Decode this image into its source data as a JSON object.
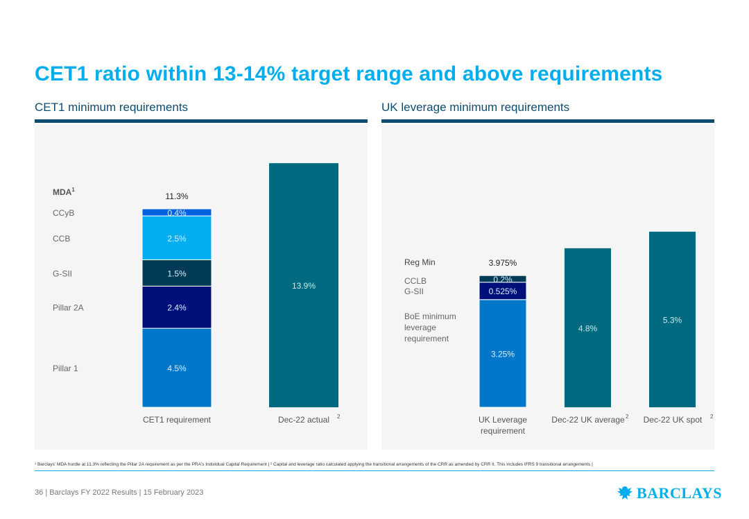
{
  "title": "CET1 ratio within 13-14% target range and above requirements",
  "left_chart_title": "CET1 minimum requirements",
  "right_chart_title": "UK leverage minimum requirements",
  "colors": {
    "accent": "#00aeef",
    "navy": "#0e4b6e",
    "teal": "#006a80",
    "blue_mid": "#0077c8",
    "dark_navy": "#000f7a",
    "dark_teal": "#003a57",
    "light_blue": "#00aeef",
    "bright_blue": "#0061e0"
  },
  "chart_data": [
    {
      "type": "bar",
      "title": "CET1 minimum requirements",
      "categories": [
        "CET1 requirement",
        "Dec-22 actual"
      ],
      "category_superscripts": [
        "",
        "2"
      ],
      "stack_components": [
        {
          "name": "Pillar 1",
          "value": 4.5,
          "label": "4.5%"
        },
        {
          "name": "Pillar 2A",
          "value": 2.4,
          "label": "2.4%"
        },
        {
          "name": "G-SII",
          "value": 1.5,
          "label": "1.5%"
        },
        {
          "name": "CCB",
          "value": 2.5,
          "label": "2.5%"
        },
        {
          "name": "CCyB",
          "value": 0.4,
          "label": "0.4%"
        }
      ],
      "stack_total_label": "MDA",
      "stack_total_superscript": "1",
      "stack_total_value": "11.3%",
      "actual": {
        "value": 13.9,
        "label": "13.9%"
      },
      "ylim": [
        0,
        14.5
      ]
    },
    {
      "type": "bar",
      "title": "UK leverage minimum requirements",
      "categories": [
        "UK Leverage requirement",
        "Dec-22 UK average",
        "Dec-22 UK spot"
      ],
      "category_lines": [
        [
          "UK Leverage",
          "requirement"
        ],
        [
          "Dec-22 UK average"
        ],
        [
          "Dec-22 UK spot"
        ]
      ],
      "category_superscripts": [
        "",
        "2",
        "2"
      ],
      "stack_components": [
        {
          "name": "BoE minimum leverage requirement",
          "lines": [
            "BoE minimum",
            "leverage",
            "requirement"
          ],
          "value": 3.25,
          "label": "3.25%"
        },
        {
          "name": "G-SII",
          "value": 0.525,
          "label": "0.525%"
        },
        {
          "name": "CCLB",
          "value": 0.2,
          "label": "0.2%"
        }
      ],
      "stack_total_label": "Reg Min",
      "stack_total_value": "3.975%",
      "bars": [
        {
          "value": 4.8,
          "label": "4.8%"
        },
        {
          "value": 5.3,
          "label": "5.3%"
        }
      ],
      "ylim": [
        0,
        5.8
      ]
    }
  ],
  "footnote": "¹ Barclays' MDA hurdle at 11.3% reflecting the Pillar 2A requirement as per the PRA's Individual Capital Requirement | ² Capital and leverage ratio calculated applying the transitional arrangements of the CRR as amended by CRR II. This includes IFRS 9 transitional arrangements |",
  "footer": {
    "page_number": "36",
    "deck": "Barclays FY 2022 Results",
    "date": "15 February 2023",
    "sep": "|"
  },
  "logo": {
    "text": "BARCLAYS",
    "icon": "eagle-icon"
  }
}
